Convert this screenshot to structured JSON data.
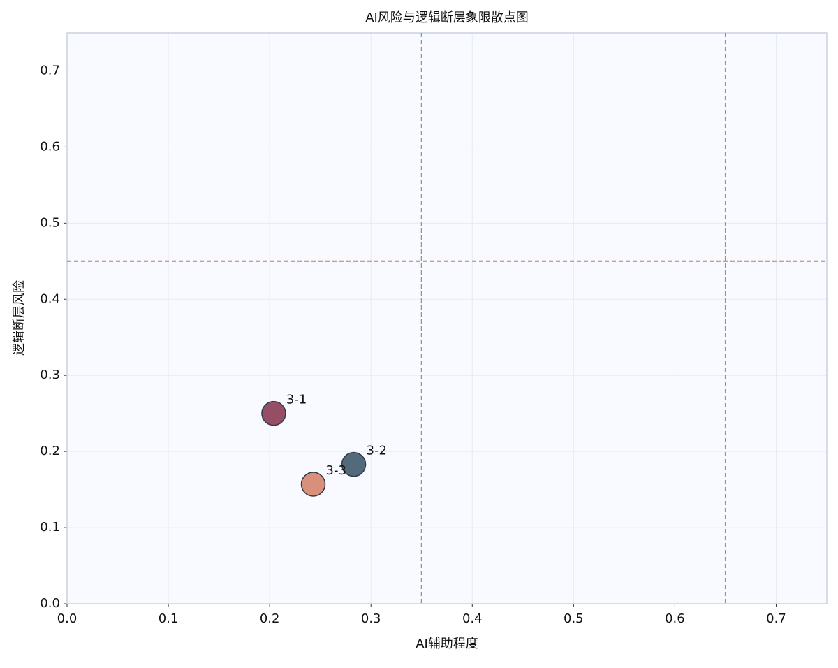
{
  "chart_data": {
    "type": "scatter",
    "title": "AI风险与逻辑断层象限散点图",
    "xlabel": "AI辅助程度",
    "ylabel": "逻辑断层风险",
    "points": [
      {
        "label": "3-1",
        "x": 0.204,
        "y": 0.25,
        "color": "#8b3a55"
      },
      {
        "label": "3-2",
        "x": 0.283,
        "y": 0.183,
        "color": "#3f5a6b"
      },
      {
        "label": "3-3",
        "x": 0.243,
        "y": 0.157,
        "color": "#d4846c"
      }
    ],
    "vlines": [
      0.35,
      0.65
    ],
    "vline_color": "#7a9e9f",
    "hlines": [
      0.45
    ],
    "hline_color": "#c8785a",
    "xlim": [
      0,
      0.75
    ],
    "ylim": [
      0,
      0.75
    ],
    "xticks": [
      {
        "value": 0,
        "label": "0.0"
      },
      0.1,
      0.2,
      0.3,
      0.4,
      0.5,
      0.6,
      0.7
    ],
    "yticks": [
      {
        "value": 0,
        "label": "0.0"
      },
      0.1,
      0.2,
      0.3,
      0.4,
      0.5,
      0.6,
      0.7
    ],
    "grid": true
  }
}
